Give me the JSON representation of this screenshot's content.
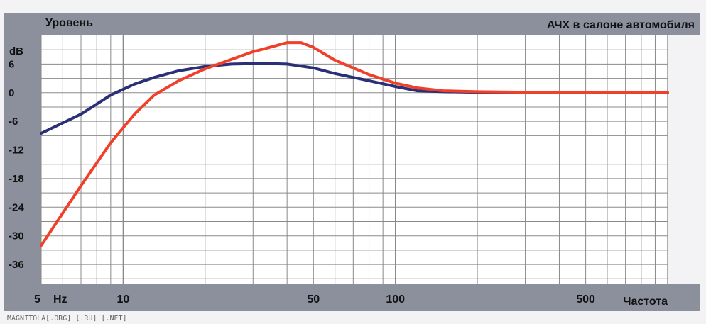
{
  "watermark": "MAGNITOLA[.ORG] [.RU] [.NET]",
  "colors": {
    "band": "#8c8f9c",
    "plot_bg": "#ffffff",
    "grid": "#8a8a8a",
    "series_blue": "#2a2f78",
    "series_red": "#f0402a"
  },
  "chart_data": {
    "type": "line",
    "title": "АЧХ в салоне автомобиля",
    "ylabel": "Уровень",
    "yunit": "dB",
    "xlabel": "Частота",
    "xunit": "Hz",
    "xscale": "log",
    "xlim": [
      5,
      1000
    ],
    "ylim": [
      -40,
      12
    ],
    "grid": true,
    "yticks": [
      {
        "value": 6,
        "label": "6"
      },
      {
        "value": 0,
        "label": "0"
      },
      {
        "value": -6,
        "label": "-6"
      },
      {
        "value": -12,
        "label": "-12"
      },
      {
        "value": -18,
        "label": "-18"
      },
      {
        "value": -24,
        "label": "-24"
      },
      {
        "value": -30,
        "label": "-30"
      },
      {
        "value": -36,
        "label": "-36"
      }
    ],
    "xticks": [
      {
        "value": 5,
        "label": "5"
      },
      {
        "value": 10,
        "label": "10"
      },
      {
        "value": 50,
        "label": "50"
      },
      {
        "value": 100,
        "label": "100"
      },
      {
        "value": 500,
        "label": "500"
      }
    ],
    "series": [
      {
        "color": "#2a2f78",
        "x": [
          5,
          7,
          9,
          11,
          13,
          16,
          20,
          25,
          30,
          35,
          40,
          50,
          60,
          80,
          100,
          120,
          150,
          200,
          300,
          500,
          1000
        ],
        "y": [
          -8.5,
          -4.5,
          -0.5,
          1.8,
          3.2,
          4.6,
          5.5,
          6.0,
          6.1,
          6.1,
          6.0,
          5.2,
          4.0,
          2.5,
          1.3,
          0.4,
          0.2,
          0.1,
          0.0,
          0.0,
          0.0
        ]
      },
      {
        "color": "#f0402a",
        "x": [
          5,
          7,
          9,
          11,
          13,
          16,
          20,
          25,
          30,
          35,
          40,
          45,
          50,
          60,
          80,
          100,
          120,
          150,
          200,
          300,
          500,
          1000
        ],
        "y": [
          -32,
          -19.5,
          -10.5,
          -4.5,
          -0.5,
          2.5,
          5.0,
          7.0,
          8.6,
          9.6,
          10.5,
          10.5,
          9.5,
          6.8,
          3.8,
          2.0,
          1.0,
          0.4,
          0.2,
          0.1,
          0.0,
          0.0
        ]
      }
    ]
  }
}
